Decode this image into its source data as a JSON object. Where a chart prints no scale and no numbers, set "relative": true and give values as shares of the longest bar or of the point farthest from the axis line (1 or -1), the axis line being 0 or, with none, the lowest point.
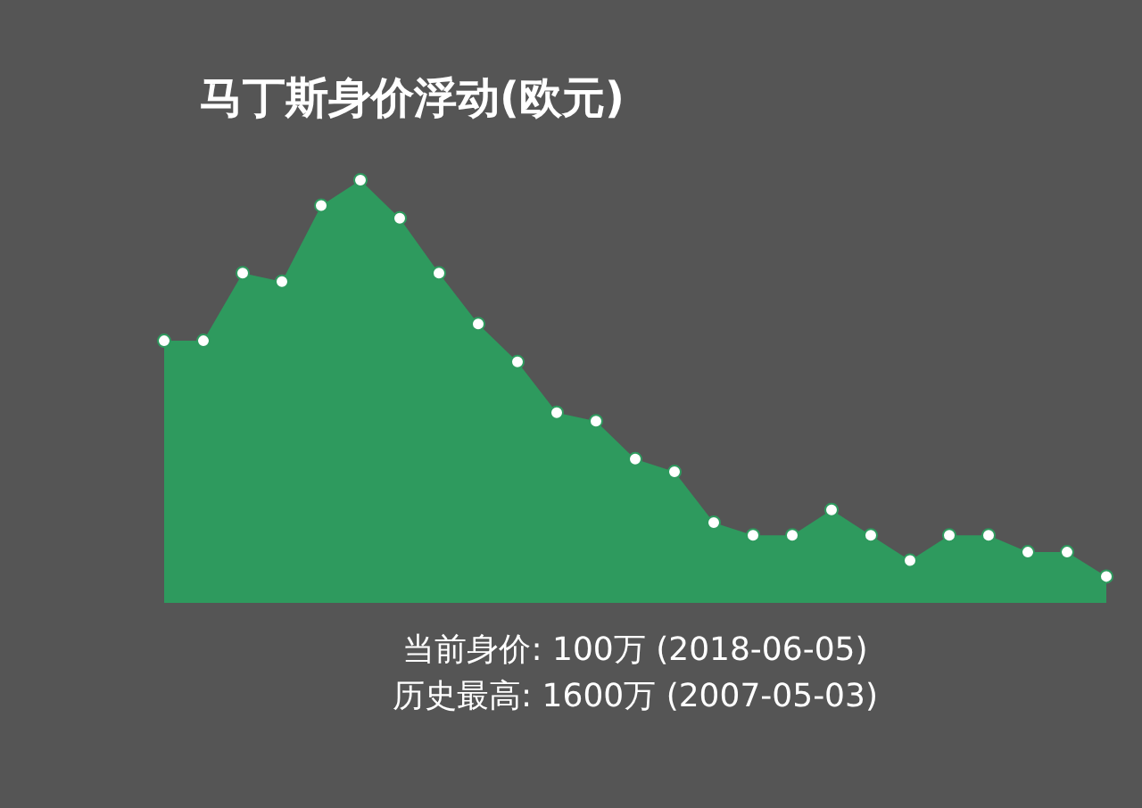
{
  "chart_data": {
    "type": "area",
    "title": "马丁斯身价浮动(欧元)",
    "annotations": [
      "当前身价: 100万 (2018-06-05)",
      "历史最高: 1600万 (2007-05-03)"
    ],
    "categories": [
      null,
      null,
      null,
      null,
      null,
      null,
      null,
      null,
      null,
      null,
      null,
      null,
      null,
      null,
      null,
      null,
      null,
      null,
      null,
      null,
      null,
      null,
      null,
      null,
      null
    ],
    "values": [
      0.62,
      0.62,
      0.78,
      0.76,
      0.94,
      1,
      0.91,
      0.78,
      0.66,
      0.57,
      0.45,
      0.43,
      0.34,
      0.31,
      0.19,
      0.16,
      0.16,
      0.22,
      0.16,
      0.1,
      0.16,
      0.16,
      0.12,
      0.12,
      0.0625
    ],
    "color": "#2e9a5e",
    "relative": true,
    "marker": "circle"
  }
}
